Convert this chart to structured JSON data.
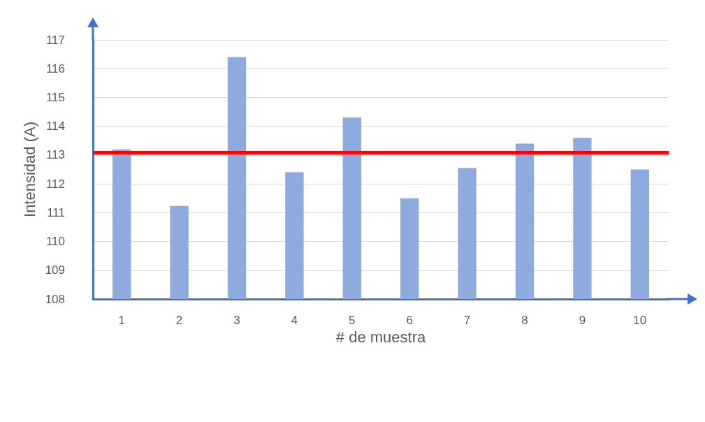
{
  "chart_data": {
    "type": "bar",
    "xlabel": "# de muestra",
    "ylabel": "Intensidad (A)",
    "categories": [
      "1",
      "2",
      "3",
      "4",
      "5",
      "6",
      "7",
      "8",
      "9",
      "10"
    ],
    "values": [
      113.2,
      111.23,
      116.4,
      112.4,
      114.3,
      111.5,
      112.55,
      113.4,
      113.6,
      112.5
    ],
    "color": "#8faadc",
    "ylim": [
      108,
      117
    ],
    "yticks": [
      108,
      109,
      110,
      111,
      112,
      113,
      114,
      115,
      116,
      117
    ],
    "grid": "y",
    "ref_lines": [
      {
        "axis": "y",
        "value": 113.1,
        "color": "#ff0000"
      }
    ]
  }
}
